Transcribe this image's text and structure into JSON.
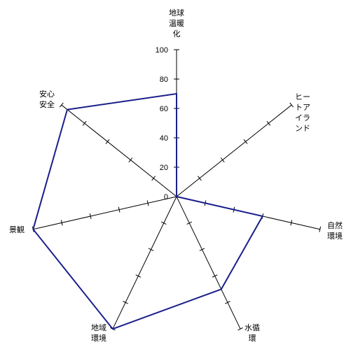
{
  "chart_data": {
    "type": "radar",
    "axis_range": [
      0,
      100
    ],
    "tick_labels": [
      "0",
      "20",
      "40",
      "60",
      "80",
      "100"
    ],
    "ticks": [
      0,
      20,
      40,
      60,
      80,
      100
    ],
    "categories": [
      {
        "label": "地球温暖化",
        "lines": [
          "地球",
          "温暖",
          "化"
        ]
      },
      {
        "label": "ヒートアイランド",
        "lines": [
          "ヒー",
          "トア",
          "イラ",
          "ンド"
        ]
      },
      {
        "label": "自然環境",
        "lines": [
          "自然",
          "環境"
        ]
      },
      {
        "label": "水循環",
        "lines": [
          "水循",
          "環"
        ]
      },
      {
        "label": "地域環境",
        "lines": [
          "地域",
          "環境"
        ]
      },
      {
        "label": "景観",
        "lines": [
          "景観"
        ]
      },
      {
        "label": "安心安全",
        "lines": [
          "安心",
          "安全"
        ]
      }
    ],
    "series": [
      {
        "values": [
          70,
          0,
          60,
          70,
          100,
          100,
          95
        ],
        "color": "#1a1f8c"
      }
    ],
    "grid": false
  }
}
